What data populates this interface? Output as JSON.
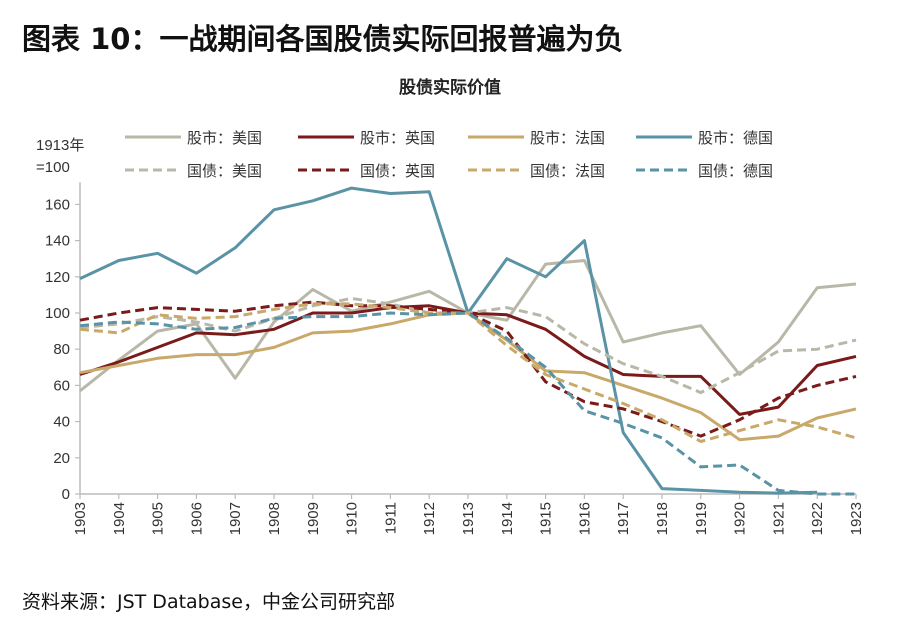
{
  "figure_title": "图表 10：一战期间各国股债实际回报普遍为负",
  "source": "资料来源：JST Database，中金公司研究部",
  "chart_data": {
    "type": "line",
    "title": "股债实际价值",
    "ylabel": "1913年\n=100",
    "ylabel_lines": [
      "1913年",
      "=100"
    ],
    "xlabel": "",
    "ylim": [
      0,
      170
    ],
    "yticks": [
      0,
      20,
      40,
      60,
      80,
      100,
      120,
      140,
      160
    ],
    "grid": false,
    "legend_position": "top",
    "x": [
      "1903",
      "1904",
      "1905",
      "1906",
      "1907",
      "1908",
      "1909",
      "1910",
      "1911",
      "1912",
      "1913",
      "1914",
      "1915",
      "1916",
      "1917",
      "1918",
      "1919",
      "1920",
      "1921",
      "1922",
      "1923"
    ],
    "series": [
      {
        "name": "股市：美国",
        "color": "#b9b8a8",
        "dash": false,
        "values": [
          57,
          74,
          90,
          94,
          64,
          95,
          113,
          101,
          106,
          112,
          100,
          96,
          127,
          129,
          84,
          89,
          93,
          66,
          84,
          114,
          116
        ]
      },
      {
        "name": "股市：英国",
        "color": "#7a1a1a",
        "dash": false,
        "values": [
          66,
          73,
          81,
          89,
          88,
          91,
          100,
          100,
          103,
          104,
          100,
          99,
          91,
          76,
          66,
          65,
          65,
          44,
          48,
          71,
          76
        ]
      },
      {
        "name": "股市：法国",
        "color": "#c8a96a",
        "dash": false,
        "values": [
          67,
          71,
          75,
          77,
          77,
          81,
          89,
          90,
          94,
          99,
          100,
          85,
          68,
          67,
          60,
          53,
          45,
          30,
          32,
          42,
          47
        ]
      },
      {
        "name": "股市：德国",
        "color": "#5a93a6",
        "dash": false,
        "values": [
          119,
          129,
          133,
          122,
          136,
          157,
          162,
          169,
          166,
          167,
          100,
          130,
          120,
          140,
          34,
          3,
          2,
          1,
          0.5,
          1,
          null
        ]
      },
      {
        "name": "国债：美国",
        "color": "#b9b8a8",
        "dash": true,
        "values": [
          92,
          94,
          98,
          95,
          90,
          97,
          104,
          108,
          105,
          100,
          100,
          103,
          98,
          83,
          72,
          65,
          56,
          67,
          79,
          80,
          85
        ]
      },
      {
        "name": "国债：英国",
        "color": "#7a1a1a",
        "dash": true,
        "values": [
          96,
          100,
          103,
          102,
          101,
          104,
          106,
          104,
          104,
          102,
          100,
          90,
          62,
          51,
          47,
          40,
          32,
          41,
          53,
          60,
          65
        ]
      },
      {
        "name": "国债：法国",
        "color": "#c8a96a",
        "dash": true,
        "values": [
          91,
          89,
          99,
          97,
          98,
          102,
          105,
          105,
          103,
          100,
          100,
          82,
          66,
          58,
          50,
          41,
          29,
          35,
          41,
          37,
          31
        ]
      },
      {
        "name": "国债：德国",
        "color": "#5a93a6",
        "dash": true,
        "values": [
          93,
          95,
          94,
          91,
          92,
          97,
          98,
          98,
          100,
          99,
          100,
          86,
          70,
          46,
          39,
          31,
          15,
          16,
          2,
          0,
          0
        ]
      }
    ]
  }
}
